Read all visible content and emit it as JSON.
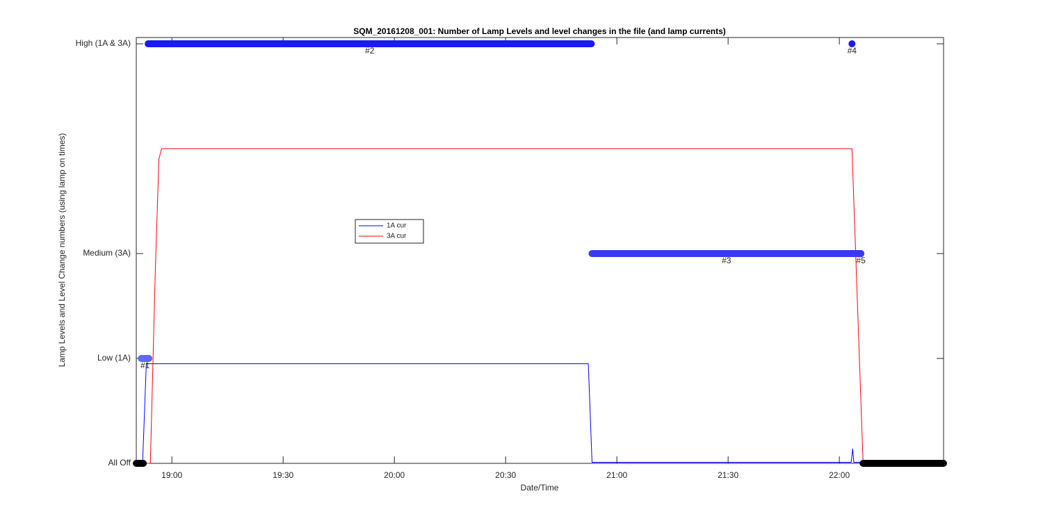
{
  "chart_data": {
    "type": "line",
    "title": "SQM_20161208_001: Number of Lamp Levels and level changes in the file (and lamp currents)",
    "x_label": "Date/Time",
    "y_label": "Lamp Levels and Level Change numbers (using lamp on times)",
    "xlim": [
      1130.4,
      1348.1
    ],
    "xticks": [
      {
        "value": 1140,
        "label": "19:00"
      },
      {
        "value": 1170,
        "label": "19:30"
      },
      {
        "value": 1200,
        "label": "20:00"
      },
      {
        "value": 1230,
        "label": "20:30"
      },
      {
        "value": 1260,
        "label": "21:00"
      },
      {
        "value": 1290,
        "label": "21:30"
      },
      {
        "value": 1320,
        "label": "22:00"
      }
    ],
    "ylim": [
      0,
      4.06
    ],
    "yticks": [
      {
        "value": 0,
        "label": "All Off"
      },
      {
        "value": 1,
        "label": "Low (1A)"
      },
      {
        "value": 2,
        "label": "Medium (3A)"
      },
      {
        "value": 4,
        "label": "High (1A & 3A)"
      }
    ],
    "series": [
      {
        "name": "1A cur",
        "color": "#0000ff",
        "x": [
          1130.4,
          1132.1,
          1133.1,
          1252.3,
          1253.3,
          1323.2,
          1323.6,
          1323.9,
          1326.2
        ],
        "values": [
          0,
          0,
          0.95,
          0.95,
          0.01,
          0.01,
          0.14,
          0.01,
          0.01
        ]
      },
      {
        "name": "3A cur",
        "color": "#ff0000",
        "x": [
          1130.4,
          1134.2,
          1135.5,
          1136.5,
          1137.2,
          1323.4,
          1326.4,
          1328
        ],
        "values": [
          0,
          0,
          1.8,
          2.9,
          3.0,
          3.0,
          0,
          0
        ]
      }
    ],
    "off_periods": [
      {
        "start": 1130.4,
        "end": 1132.3,
        "level": 0,
        "color": "#000000"
      },
      {
        "start": 1326.4,
        "end": 1348.1,
        "level": 0,
        "color": "#000000"
      }
    ],
    "level_changes": [
      {
        "label": "#1",
        "start": 1131.75,
        "end": 1133.8,
        "level": 1,
        "color": "#5b6bf5"
      },
      {
        "label": "#2",
        "start": 1133.6,
        "end": 1253.1,
        "level": 4,
        "color": "#1a1af5"
      },
      {
        "label": "#3",
        "start": 1253.3,
        "end": 1325.8,
        "level": 2,
        "color": "#3a3af0"
      },
      {
        "label": "#4",
        "start": 1323.4,
        "end": 1323.4,
        "level": 4,
        "color": "#1a1af5"
      },
      {
        "label": "#5",
        "start": 1325.8,
        "end": 1325.8,
        "level": 2,
        "color": "#3a3af0"
      }
    ]
  }
}
